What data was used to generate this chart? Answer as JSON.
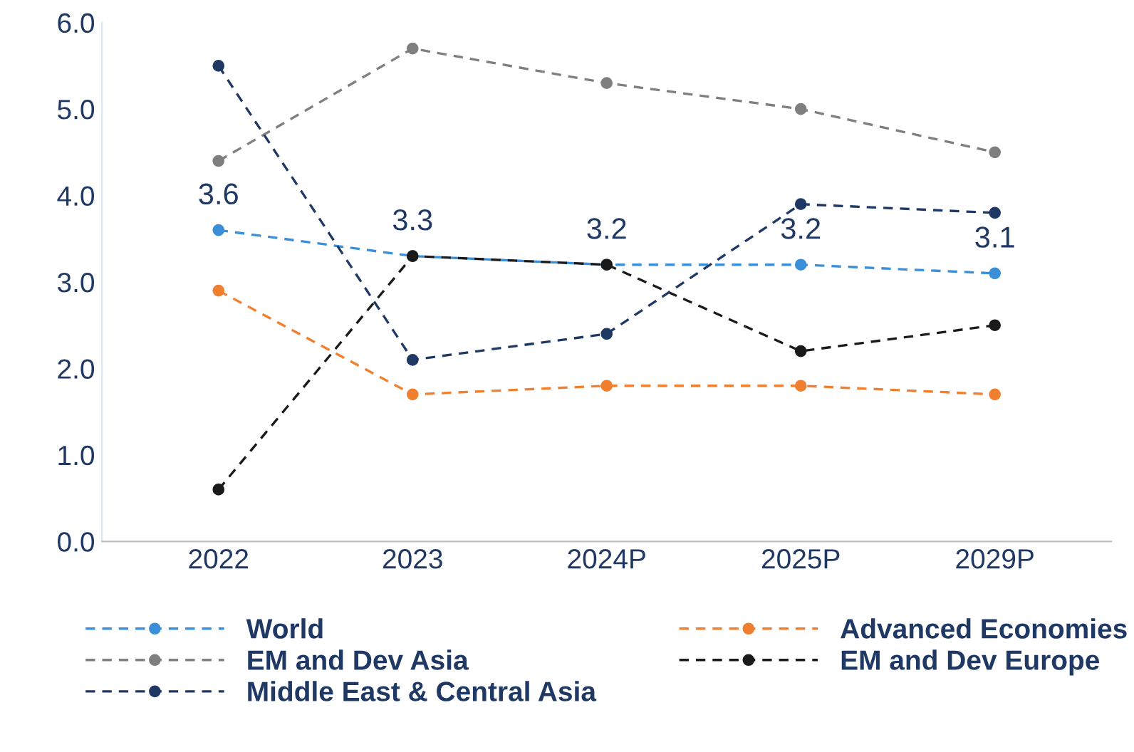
{
  "chart_data": {
    "type": "line",
    "categories": [
      "2022",
      "2023",
      "2024P",
      "2025P",
      "2029P"
    ],
    "ylim": [
      0,
      6
    ],
    "yticks": [
      "0.0",
      "1.0",
      "2.0",
      "3.0",
      "4.0",
      "5.0",
      "6.0"
    ],
    "grid": false,
    "legend": "bottom",
    "marker": "circle",
    "line_style": "dashed",
    "series": [
      {
        "name": "World",
        "color": "#3b8fd9",
        "values": [
          3.6,
          3.3,
          3.2,
          3.2,
          3.1
        ],
        "value_labels": [
          "3.6",
          "3.3",
          "3.2",
          "3.2",
          "3.1"
        ]
      },
      {
        "name": "Advanced Economies",
        "color": "#f08030",
        "values": [
          2.9,
          1.7,
          1.8,
          1.8,
          1.7
        ]
      },
      {
        "name": "EM and Dev Asia",
        "color": "#7f7f7f",
        "values": [
          4.4,
          5.7,
          5.3,
          5.0,
          4.5
        ]
      },
      {
        "name": "EM and Dev Europe",
        "color": "#1a1a1a",
        "values": [
          0.6,
          3.3,
          3.2,
          2.2,
          2.5
        ]
      },
      {
        "name": "Middle East & Central Asia",
        "color": "#1f3864",
        "values": [
          5.5,
          2.1,
          2.4,
          3.9,
          3.8
        ]
      }
    ]
  }
}
